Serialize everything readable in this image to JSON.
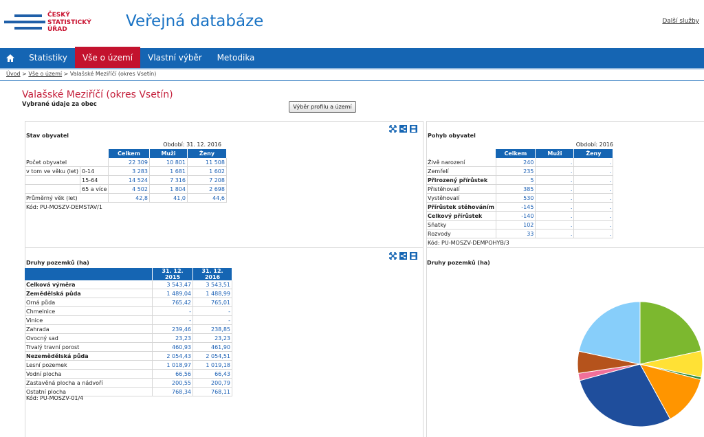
{
  "header": {
    "logo_lines": [
      "ČESKÝ",
      "STATISTICKÝ",
      "ÚŘAD"
    ],
    "site_title": "Veřejná databáze",
    "dalsi_sluzby": "Další služby"
  },
  "nav": {
    "items": [
      {
        "label": "Statistiky"
      },
      {
        "label": "Vše o území"
      },
      {
        "label": "Vlastní výběr"
      },
      {
        "label": "Metodika"
      }
    ],
    "active": "Vše o území"
  },
  "breadcrumb": {
    "links": [
      "Úvod",
      "Vše o území"
    ],
    "current": "Valašské Meziříčí (okres Vsetín)"
  },
  "page": {
    "title": "Valašské Meziříčí (okres Vsetín)",
    "subtitle": "Vybrané údaje za obec",
    "profile_button": "Výběr profilu a území"
  },
  "stav": {
    "title": "Stav obyvatel",
    "period": "Období: 31. 12. 2016",
    "headers": [
      "Celkem",
      "Muži",
      "Ženy"
    ],
    "rows": [
      {
        "label": "Počet obyvatel",
        "sub": "",
        "values": [
          "22 309",
          "10 801",
          "11 508"
        ]
      },
      {
        "label": "v tom ve věku (let)",
        "sub": "0-14",
        "values": [
          "3 283",
          "1 681",
          "1 602"
        ]
      },
      {
        "label": "",
        "sub": "15-64",
        "values": [
          "14 524",
          "7 316",
          "7 208"
        ]
      },
      {
        "label": "",
        "sub": "65 a více",
        "values": [
          "4 502",
          "1 804",
          "2 698"
        ]
      },
      {
        "label": "Průměrný věk (let)",
        "sub": "",
        "values": [
          "42,8",
          "41,0",
          "44,6"
        ]
      }
    ],
    "code": "Kód: PU-MOSZV-DEMSTAV/1"
  },
  "pohyb": {
    "title": "Pohyb obyvatel",
    "period": "Období: 2016",
    "headers": [
      "Celkem",
      "Muži",
      "Ženy"
    ],
    "rows": [
      {
        "label": "Živě narození",
        "bold": false,
        "values": [
          "240",
          ".",
          "."
        ]
      },
      {
        "label": "Zemřelí",
        "bold": false,
        "values": [
          "235",
          ".",
          "."
        ]
      },
      {
        "label": "Přirozený přírůstek",
        "bold": true,
        "values": [
          "5",
          ".",
          "."
        ]
      },
      {
        "label": "Přistěhovalí",
        "bold": false,
        "values": [
          "385",
          ".",
          "."
        ]
      },
      {
        "label": "Vystěhovalí",
        "bold": false,
        "values": [
          "530",
          ".",
          "."
        ]
      },
      {
        "label": "Přírůstek stěhováním",
        "bold": true,
        "values": [
          "-145",
          ".",
          "."
        ]
      },
      {
        "label": "Celkový přírůstek",
        "bold": true,
        "values": [
          "-140",
          ".",
          "."
        ]
      },
      {
        "label": "Sňatky",
        "bold": false,
        "values": [
          "102",
          ".",
          "."
        ]
      },
      {
        "label": "Rozvody",
        "bold": false,
        "values": [
          "33",
          ".",
          "."
        ]
      }
    ],
    "code": "Kód: PU-MOSZV-DEMPOHYB/3"
  },
  "pozemky": {
    "title": "Druhy pozemků (ha)",
    "headers": [
      "31. 12. 2015",
      "31. 12. 2016"
    ],
    "rows": [
      {
        "label": "Celková výměra",
        "bold": true,
        "values": [
          "3 543,47",
          "3 543,51"
        ]
      },
      {
        "label": "Zemědělská půda",
        "bold": true,
        "values": [
          "1 489,04",
          "1 488,99"
        ]
      },
      {
        "label": "Orná půda",
        "bold": false,
        "values": [
          "765,42",
          "765,01"
        ]
      },
      {
        "label": "Chmelnice",
        "bold": false,
        "values": [
          "-",
          "-"
        ]
      },
      {
        "label": "Vinice",
        "bold": false,
        "values": [
          "-",
          "-"
        ]
      },
      {
        "label": "Zahrada",
        "bold": false,
        "values": [
          "239,46",
          "238,85"
        ]
      },
      {
        "label": "Ovocný sad",
        "bold": false,
        "values": [
          "23,23",
          "23,23"
        ]
      },
      {
        "label": "Trvalý travní porost",
        "bold": false,
        "values": [
          "460,93",
          "461,90"
        ]
      },
      {
        "label": "Nezemědělská půda",
        "bold": true,
        "values": [
          "2 054,43",
          "2 054,51"
        ]
      },
      {
        "label": "Lesní pozemek",
        "bold": false,
        "values": [
          "1 018,97",
          "1 019,18"
        ]
      },
      {
        "label": "Vodní plocha",
        "bold": false,
        "values": [
          "66,56",
          "66,43"
        ]
      },
      {
        "label": "Zastavěná plocha a nádvoří",
        "bold": false,
        "values": [
          "200,55",
          "200,79"
        ]
      },
      {
        "label": "Ostatní plocha",
        "bold": false,
        "values": [
          "768,34",
          "768,11"
        ]
      }
    ],
    "code": "Kód: PU-MOSZV-01/4"
  },
  "chart_data": {
    "type": "pie",
    "title": "Druhy pozemků (ha)",
    "slices": [
      {
        "value": 765.01,
        "color": "#7cb82f"
      },
      {
        "value": 238.85,
        "color": "#ffe135"
      },
      {
        "value": 23.23,
        "color": "#2e8b3a"
      },
      {
        "value": 461.9,
        "color": "#ff9500"
      },
      {
        "value": 1019.18,
        "color": "#1f4e9c"
      },
      {
        "value": 66.43,
        "color": "#f0709a"
      },
      {
        "value": 200.79,
        "color": "#b5531c"
      },
      {
        "value": 768.11,
        "color": "#87cefa"
      }
    ]
  },
  "icons": [
    "expand-icon",
    "share-icon",
    "save-icon"
  ]
}
